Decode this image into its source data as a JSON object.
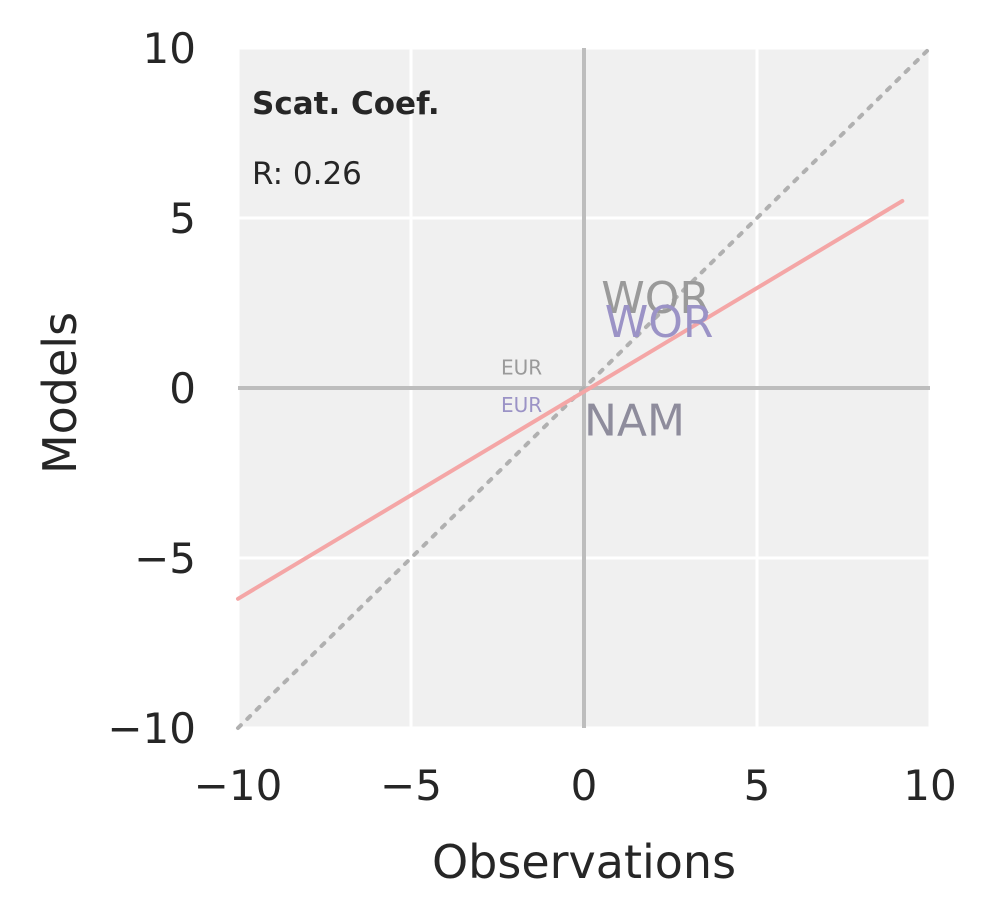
{
  "chart_data": {
    "type": "scatter",
    "xlabel": "Observations",
    "ylabel": "Models",
    "xlim": [
      -10,
      10
    ],
    "ylim": [
      -10,
      10
    ],
    "xticks": [
      -10,
      -5,
      0,
      5,
      10
    ],
    "yticks": [
      -10,
      -5,
      0,
      5,
      10
    ],
    "xtick_labels": [
      "−10",
      "−5",
      "0",
      "5",
      "10"
    ],
    "ytick_labels": [
      "−10",
      "−5",
      "0",
      "5",
      "10"
    ],
    "grid": true,
    "annotation_title": "Scat. Coef.",
    "annotation_text": "R: 0.26",
    "regression_line": {
      "x": [
        -10,
        9.2
      ],
      "y": [
        -6.2,
        5.5
      ],
      "color": "#f4a6a6"
    },
    "identity_line": {
      "x": [
        -10,
        10
      ],
      "y": [
        -10,
        10
      ],
      "color": "#b0b0b0"
    },
    "points": [
      {
        "label": "WOR",
        "x": 0.5,
        "y": 2.2,
        "size": "large",
        "color": "#9a9a9a"
      },
      {
        "label": "WOR",
        "x": 0.6,
        "y": 1.5,
        "size": "large",
        "color": "#9b93c6"
      },
      {
        "label": "NAM",
        "x": 0.0,
        "y": -1.4,
        "size": "large",
        "color": "#8e8c9c"
      },
      {
        "label": "EUR",
        "x": -2.4,
        "y": 0.4,
        "size": "small",
        "color": "#9a9a9a"
      },
      {
        "label": "EUR",
        "x": -2.4,
        "y": -0.7,
        "size": "small",
        "color": "#9b93c6"
      }
    ]
  }
}
